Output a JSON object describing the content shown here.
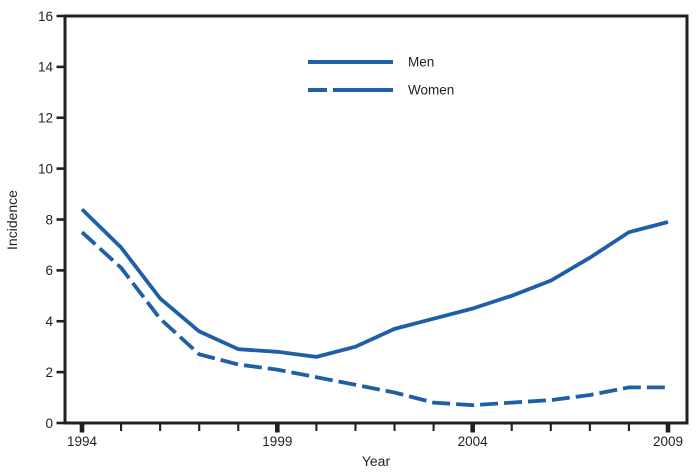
{
  "chart_data": {
    "type": "line",
    "title": "",
    "xlabel": "Year",
    "ylabel": "Incidence",
    "x": [
      1994,
      1995,
      1996,
      1997,
      1998,
      1999,
      2000,
      2001,
      2002,
      2003,
      2004,
      2005,
      2006,
      2007,
      2008,
      2009
    ],
    "series": [
      {
        "name": "Men",
        "line_style": "solid",
        "values": [
          8.4,
          6.9,
          4.9,
          3.6,
          2.9,
          2.8,
          2.6,
          3.0,
          3.7,
          4.1,
          4.5,
          5.0,
          5.6,
          6.5,
          7.5,
          7.9
        ]
      },
      {
        "name": "Women",
        "line_style": "dashed",
        "values": [
          7.5,
          6.1,
          4.1,
          2.7,
          2.3,
          2.1,
          1.8,
          1.5,
          1.2,
          0.8,
          0.7,
          0.8,
          0.9,
          1.1,
          1.4,
          1.4
        ]
      }
    ],
    "ylim": [
      0,
      16
    ],
    "yticks": [
      0,
      2,
      4,
      6,
      8,
      10,
      12,
      14,
      16
    ],
    "xticks_labeled": [
      1994,
      1999,
      2004,
      2009
    ],
    "grid": false,
    "legend_position": "top-center-inside",
    "line_color": "#1f5fa8",
    "axis_color": "#231f20"
  }
}
